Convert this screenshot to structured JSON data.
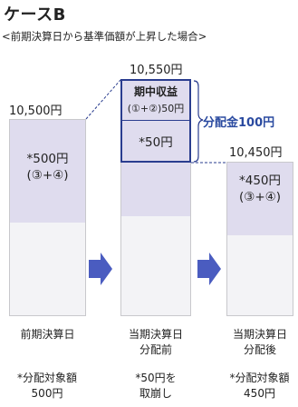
{
  "header": {
    "title": "ケースB",
    "subtitle": "<前期決算日から基準価額が上昇した場合>"
  },
  "col1": {
    "price": "10,500円",
    "inner_line1": "*500円",
    "inner_line2": "(③+④)",
    "caption": "前期決算日",
    "note_line1": "*分配対象額",
    "note_line2": "500円"
  },
  "col2": {
    "price": "10,550円",
    "income_title": "期中収益",
    "income_sub": "(①+②)50円",
    "inner_line1": "*50円",
    "caption_line1": "当期決算日",
    "caption_line2": "分配前",
    "note_line1": "*50円を",
    "note_line2": "取崩し"
  },
  "col3": {
    "price": "10,450円",
    "inner_line1": "*450円",
    "inner_line2": "(③+④)",
    "caption_line1": "当期決算日",
    "caption_line2": "分配後",
    "note_line1": "*分配対象額",
    "note_line2": "450円"
  },
  "distribution": {
    "label": "分配金100円"
  },
  "colors": {
    "accent": "#2a3d8f",
    "shade": "#dfdcee",
    "arrow": "#4a5cc0"
  }
}
